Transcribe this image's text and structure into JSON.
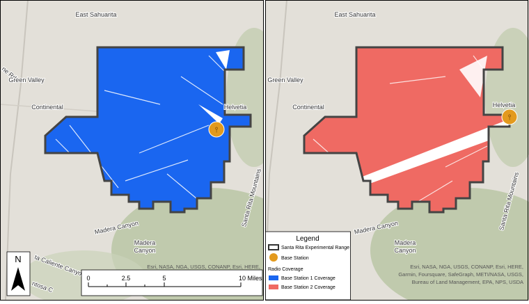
{
  "left_map": {
    "labels": {
      "east_sahuarita": "East Sahuarita",
      "road": "ne Rd",
      "green_valley": "Green Valley",
      "continental": "Continental",
      "helvetia": "Helvetia",
      "madera_canyon_road": "Madera Canyon",
      "madera_canyon": [
        "Madera",
        "Canyon"
      ],
      "santa_rita_mountains": "Santa Rita Mountains",
      "caliente_canyon": "ta Caliente Canyon",
      "montosa": "ntosa C"
    },
    "attribution": [
      "Esri, NASA, NGA, USGS, CONANP, Esri, HERE,"
    ]
  },
  "right_map": {
    "labels": {
      "east_sahuarita": "East Sahuarita",
      "green_valley": "Green Valley",
      "continental": "Continental",
      "helvetia": "Helvetia",
      "madera_canyon_road": "Madera Canyon",
      "madera_canyon": [
        "Madera",
        "Canyon"
      ],
      "santa_rita_mountains": "Santa Rita Mountains"
    },
    "attribution": [
      "Esri, NASA, NGA, USGS, CONANP, Esri, HERE,",
      "Garmin, Foursquare, SafeGraph, METI/NASA, USGS,",
      "Bureau of Land Management, EPA, NPS, USDA"
    ]
  },
  "north_arrow": "N",
  "scale_bar": {
    "labels": [
      "0",
      "2.5",
      "5",
      "10 Miles"
    ]
  },
  "legend": {
    "title": "Legend",
    "range": "Santa Rita Experimental Range",
    "base_station": "Base Station",
    "coverage_heading": "Radio Coverage",
    "coverage_1": "Base Station 1 Coverage",
    "coverage_2": "Base Station 2 Coverage"
  }
}
